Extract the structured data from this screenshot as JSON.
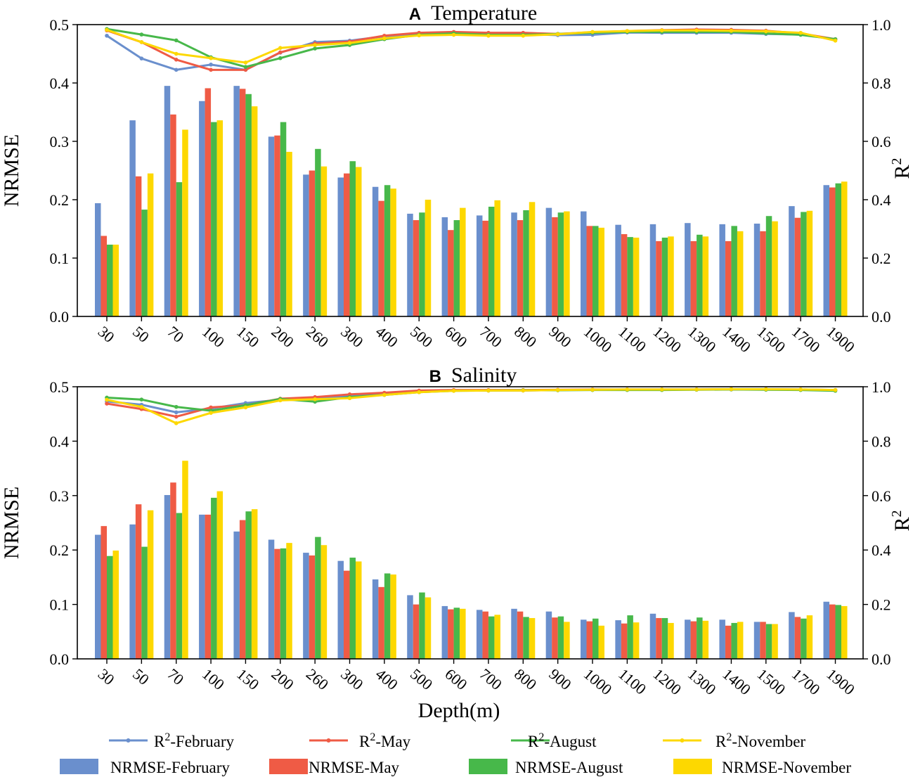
{
  "x_axis_title": "Depth(m)",
  "colors": {
    "February": "#6a8fcd",
    "May": "#ef5b45",
    "August": "#47b84a",
    "November": "#fdd800"
  },
  "legend": {
    "line_items": [
      {
        "base": "R",
        "sup": "2",
        "suffix": "-February",
        "color_key": "February"
      },
      {
        "base": "R",
        "sup": "2",
        "suffix": "-May",
        "color_key": "May"
      },
      {
        "base": "R",
        "sup": "2",
        "suffix": "-August",
        "color_key": "August"
      },
      {
        "base": "R",
        "sup": "2",
        "suffix": "-November",
        "color_key": "November"
      }
    ],
    "bar_items": [
      {
        "label": "NRMSE-February",
        "color_key": "February"
      },
      {
        "label": "NRMSE-May",
        "color_key": "May"
      },
      {
        "label": "NRMSE-August",
        "color_key": "August"
      },
      {
        "label": "NRMSE-November",
        "color_key": "November"
      }
    ]
  },
  "chart_data": [
    {
      "type": "bar",
      "panel_letter": "A",
      "title": "Temperature",
      "xlabel": "Depth(m)",
      "ylabel": "NRMSE",
      "y2label_base": "R",
      "y2label_sup": "2",
      "ylim": [
        0,
        0.5
      ],
      "y2lim": [
        0,
        1.0
      ],
      "yticks": [
        "0.0",
        "0.1",
        "0.2",
        "0.3",
        "0.4",
        "0.5"
      ],
      "y2ticks": [
        "0.0",
        "0.2",
        "0.4",
        "0.6",
        "0.8",
        "1.0"
      ],
      "categories": [
        "30",
        "50",
        "70",
        "100",
        "150",
        "200",
        "260",
        "300",
        "400",
        "500",
        "600",
        "700",
        "800",
        "900",
        "1000",
        "1100",
        "1200",
        "1300",
        "1400",
        "1500",
        "1700",
        "1900"
      ],
      "series": [
        {
          "name": "NRMSE-February",
          "kind": "bar",
          "color_key": "February",
          "values": [
            0.194,
            0.336,
            0.395,
            0.369,
            0.395,
            0.308,
            0.243,
            0.238,
            0.222,
            0.176,
            0.17,
            0.173,
            0.178,
            0.186,
            0.18,
            0.157,
            0.158,
            0.16,
            0.158,
            0.159,
            0.189,
            0.225
          ]
        },
        {
          "name": "NRMSE-May",
          "kind": "bar",
          "color_key": "May",
          "values": [
            0.138,
            0.24,
            0.346,
            0.391,
            0.39,
            0.31,
            0.25,
            0.245,
            0.198,
            0.165,
            0.148,
            0.164,
            0.165,
            0.17,
            0.155,
            0.141,
            0.129,
            0.129,
            0.129,
            0.146,
            0.169,
            0.221
          ]
        },
        {
          "name": "NRMSE-August",
          "kind": "bar",
          "color_key": "August",
          "values": [
            0.123,
            0.183,
            0.23,
            0.333,
            0.381,
            0.333,
            0.287,
            0.266,
            0.225,
            0.178,
            0.165,
            0.188,
            0.182,
            0.178,
            0.155,
            0.136,
            0.135,
            0.14,
            0.155,
            0.172,
            0.179,
            0.228
          ]
        },
        {
          "name": "NRMSE-November",
          "kind": "bar",
          "color_key": "November",
          "values": [
            0.123,
            0.245,
            0.32,
            0.336,
            0.36,
            0.282,
            0.257,
            0.256,
            0.219,
            0.2,
            0.186,
            0.199,
            0.196,
            0.18,
            0.152,
            0.135,
            0.137,
            0.137,
            0.146,
            0.163,
            0.181,
            0.231
          ]
        },
        {
          "name": "R2-February",
          "kind": "line",
          "color_key": "February",
          "values": [
            0.962,
            0.884,
            0.845,
            0.863,
            0.845,
            0.904,
            0.94,
            0.945,
            0.96,
            0.968,
            0.972,
            0.968,
            0.968,
            0.964,
            0.965,
            0.973,
            0.972,
            0.972,
            0.972,
            0.968,
            0.966,
            0.95
          ]
        },
        {
          "name": "R2-May",
          "kind": "line",
          "color_key": "May",
          "values": [
            0.98,
            0.94,
            0.88,
            0.845,
            0.845,
            0.905,
            0.935,
            0.942,
            0.962,
            0.972,
            0.975,
            0.972,
            0.972,
            0.968,
            0.974,
            0.978,
            0.981,
            0.983,
            0.982,
            0.979,
            0.97,
            0.95
          ]
        },
        {
          "name": "R2-August",
          "kind": "line",
          "color_key": "August",
          "values": [
            0.985,
            0.966,
            0.946,
            0.888,
            0.855,
            0.885,
            0.918,
            0.93,
            0.95,
            0.965,
            0.97,
            0.965,
            0.965,
            0.968,
            0.972,
            0.975,
            0.975,
            0.975,
            0.975,
            0.97,
            0.965,
            0.95
          ]
        },
        {
          "name": "R2-November",
          "kind": "line",
          "color_key": "November",
          "values": [
            0.982,
            0.94,
            0.9,
            0.885,
            0.87,
            0.92,
            0.93,
            0.937,
            0.953,
            0.963,
            0.965,
            0.962,
            0.962,
            0.967,
            0.975,
            0.978,
            0.98,
            0.98,
            0.979,
            0.977,
            0.972,
            0.945
          ]
        }
      ]
    },
    {
      "type": "bar",
      "panel_letter": "B",
      "title": "Salinity",
      "xlabel": "Depth(m)",
      "ylabel": "NRMSE",
      "y2label_base": "R",
      "y2label_sup": "2",
      "ylim": [
        0,
        0.5
      ],
      "y2lim": [
        0,
        1.0
      ],
      "yticks": [
        "0.0",
        "0.1",
        "0.2",
        "0.3",
        "0.4",
        "0.5"
      ],
      "y2ticks": [
        "0.0",
        "0.2",
        "0.4",
        "0.6",
        "0.8",
        "1.0"
      ],
      "categories": [
        "30",
        "50",
        "70",
        "100",
        "150",
        "200",
        "260",
        "300",
        "400",
        "500",
        "600",
        "700",
        "800",
        "900",
        "1000",
        "1100",
        "1200",
        "1300",
        "1400",
        "1500",
        "1700",
        "1900"
      ],
      "series": [
        {
          "name": "NRMSE-February",
          "kind": "bar",
          "color_key": "February",
          "values": [
            0.228,
            0.247,
            0.301,
            0.265,
            0.234,
            0.219,
            0.195,
            0.18,
            0.146,
            0.117,
            0.097,
            0.09,
            0.092,
            0.087,
            0.072,
            0.071,
            0.083,
            0.072,
            0.072,
            0.068,
            0.086,
            0.105
          ]
        },
        {
          "name": "NRMSE-May",
          "kind": "bar",
          "color_key": "May",
          "values": [
            0.244,
            0.284,
            0.324,
            0.265,
            0.255,
            0.202,
            0.19,
            0.162,
            0.132,
            0.1,
            0.091,
            0.087,
            0.087,
            0.076,
            0.069,
            0.065,
            0.075,
            0.069,
            0.061,
            0.068,
            0.077,
            0.1
          ]
        },
        {
          "name": "NRMSE-August",
          "kind": "bar",
          "color_key": "August",
          "values": [
            0.189,
            0.206,
            0.268,
            0.296,
            0.271,
            0.203,
            0.224,
            0.186,
            0.157,
            0.122,
            0.094,
            0.078,
            0.077,
            0.078,
            0.074,
            0.08,
            0.075,
            0.076,
            0.066,
            0.064,
            0.074,
            0.099
          ]
        },
        {
          "name": "NRMSE-November",
          "kind": "bar",
          "color_key": "November",
          "values": [
            0.199,
            0.273,
            0.364,
            0.308,
            0.275,
            0.213,
            0.209,
            0.179,
            0.155,
            0.113,
            0.092,
            0.081,
            0.075,
            0.068,
            0.061,
            0.067,
            0.066,
            0.07,
            0.068,
            0.064,
            0.08,
            0.097
          ]
        },
        {
          "name": "R2-February",
          "kind": "line",
          "color_key": "February",
          "values": [
            0.946,
            0.934,
            0.906,
            0.92,
            0.94,
            0.952,
            0.96,
            0.965,
            0.975,
            0.983,
            0.986,
            0.986,
            0.986,
            0.988,
            0.989,
            0.99,
            0.99,
            0.99,
            0.99,
            0.99,
            0.989,
            0.988
          ]
        },
        {
          "name": "R2-May",
          "kind": "line",
          "color_key": "May",
          "values": [
            0.938,
            0.918,
            0.89,
            0.924,
            0.932,
            0.956,
            0.962,
            0.972,
            0.978,
            0.986,
            0.988,
            0.988,
            0.988,
            0.989,
            0.99,
            0.99,
            0.99,
            0.99,
            0.991,
            0.991,
            0.99,
            0.988
          ]
        },
        {
          "name": "R2-August",
          "kind": "line",
          "color_key": "August",
          "values": [
            0.96,
            0.953,
            0.926,
            0.912,
            0.932,
            0.955,
            0.945,
            0.962,
            0.97,
            0.98,
            0.985,
            0.986,
            0.987,
            0.987,
            0.988,
            0.988,
            0.988,
            0.989,
            0.99,
            0.989,
            0.988,
            0.985
          ]
        },
        {
          "name": "R2-November",
          "kind": "line",
          "color_key": "November",
          "values": [
            0.952,
            0.926,
            0.866,
            0.904,
            0.924,
            0.95,
            0.954,
            0.958,
            0.97,
            0.98,
            0.985,
            0.986,
            0.986,
            0.988,
            0.989,
            0.99,
            0.99,
            0.99,
            0.991,
            0.991,
            0.99,
            0.988
          ]
        }
      ]
    }
  ]
}
